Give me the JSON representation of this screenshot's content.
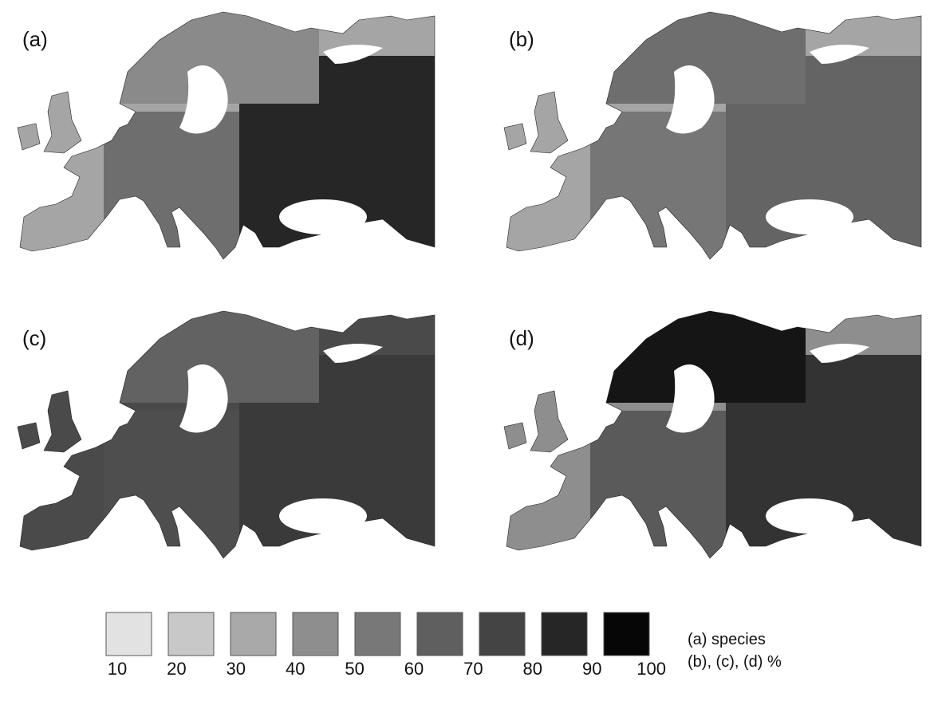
{
  "panels": [
    {
      "label": "(a)"
    },
    {
      "label": "(b)"
    },
    {
      "label": "(c)"
    },
    {
      "label": "(d)"
    }
  ],
  "legend": {
    "colors": [
      "#e2e2e2",
      "#c8c8c8",
      "#a9a9a9",
      "#8e8e8e",
      "#787878",
      "#5f5f5f",
      "#444444",
      "#262626",
      "#060606"
    ],
    "ticks": [
      10,
      20,
      30,
      40,
      50,
      60,
      70,
      80,
      90,
      100
    ],
    "caption": [
      "(a) species",
      "(b), (c), (d) %"
    ]
  }
}
